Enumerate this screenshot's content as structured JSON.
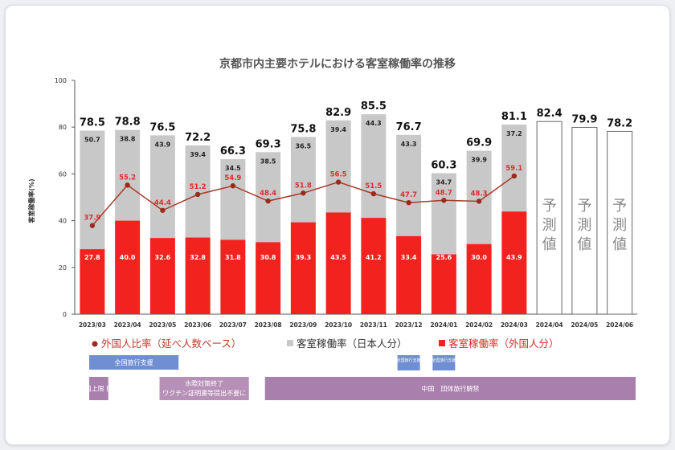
{
  "chart_data": {
    "type": "bar",
    "title": "京都市内主要ホテルにおける客室稼働率の推移",
    "ylabel": "客室稼働率(%)",
    "ylim": [
      0,
      100
    ],
    "yticks": [
      "0",
      "20",
      "40",
      "60",
      "80",
      "100"
    ],
    "categories": [
      "2023/03",
      "2023/04",
      "2023/05",
      "2023/06",
      "2023/07",
      "2023/08",
      "2023/09",
      "2023/10",
      "2023/11",
      "2023/12",
      "2024/01",
      "2024/02",
      "2024/03",
      "2024/04",
      "2024/05",
      "2024/06"
    ],
    "series": [
      {
        "name": "客室稼働率（外国人分）",
        "color": "#f2231f",
        "values": [
          27.8,
          40.0,
          32.6,
          32.8,
          31.8,
          30.8,
          39.3,
          43.5,
          41.2,
          33.4,
          25.6,
          30.0,
          43.9,
          null,
          null,
          null
        ]
      },
      {
        "name": "客室稼働率（日本人分）",
        "color": "#c8c8c8",
        "values": [
          50.7,
          38.8,
          43.9,
          39.4,
          34.5,
          38.5,
          36.5,
          39.4,
          44.3,
          43.3,
          34.7,
          39.9,
          37.2,
          null,
          null,
          null
        ]
      },
      {
        "name": "外国人比率（延べ人数ベース）",
        "type": "line",
        "color": "#a83b2a",
        "values": [
          37.9,
          55.2,
          44.4,
          51.2,
          54.9,
          48.4,
          51.8,
          56.5,
          51.5,
          47.7,
          48.7,
          48.3,
          59.1,
          null,
          null,
          null
        ]
      }
    ],
    "totals": [
      "78.5",
      "78.8",
      "76.5",
      "72.2",
      "66.3",
      "69.3",
      "75.8",
      "82.9",
      "85.5",
      "76.7",
      "60.3",
      "69.9",
      "81.1",
      "82.4",
      "79.9",
      "78.2"
    ],
    "forecast_values": [
      82.4,
      79.9,
      78.2
    ],
    "forecast_label": "予測値",
    "legend": [
      "外国人比率（延べ人数ベース）",
      "客室稼働率（日本人分）",
      "客室稼働率（外国人分）"
    ],
    "grid": false
  },
  "banners": [
    {
      "text": "全国旅行支援",
      "color": "#6f8fd2",
      "from": 0,
      "to": 2
    },
    {
      "text": "全国旅行支援",
      "color": "#6f8fd2",
      "from": 9,
      "to": 9,
      "small": true
    },
    {
      "text": "全国旅行支援",
      "color": "#6f8fd2",
      "from": 10,
      "to": 10,
      "small": true
    },
    {
      "text": "入国上限 撤廃",
      "color": "#a97fae",
      "from": 0,
      "to": 0,
      "row": 2
    },
    {
      "text": "水際対策終了",
      "sub": "ワクチン証明書等提出不要に",
      "color": "#b790b8",
      "from": 2,
      "to": 4,
      "row": 2
    },
    {
      "text": "中国　団体旅行解禁",
      "color": "#a97fae",
      "from": 5,
      "to": 15,
      "row": 2
    }
  ]
}
